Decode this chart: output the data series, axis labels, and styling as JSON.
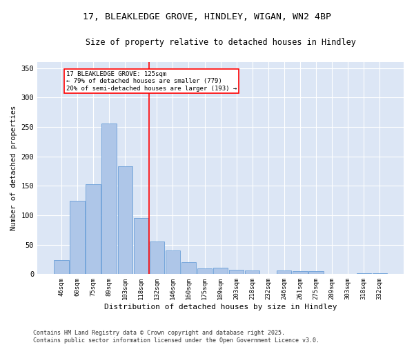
{
  "title_line1": "17, BLEAKLEDGE GROVE, HINDLEY, WIGAN, WN2 4BP",
  "title_line2": "Size of property relative to detached houses in Hindley",
  "xlabel": "Distribution of detached houses by size in Hindley",
  "ylabel": "Number of detached properties",
  "categories": [
    "46sqm",
    "60sqm",
    "75sqm",
    "89sqm",
    "103sqm",
    "118sqm",
    "132sqm",
    "146sqm",
    "160sqm",
    "175sqm",
    "189sqm",
    "203sqm",
    "218sqm",
    "232sqm",
    "246sqm",
    "261sqm",
    "275sqm",
    "289sqm",
    "303sqm",
    "318sqm",
    "332sqm"
  ],
  "values": [
    24,
    124,
    153,
    256,
    183,
    95,
    55,
    40,
    20,
    10,
    11,
    7,
    6,
    0,
    6,
    5,
    5,
    0,
    0,
    2,
    2
  ],
  "bar_color": "#aec6e8",
  "bar_edge_color": "#6a9fd8",
  "marker_label": "17 BLEAKLEDGE GROVE: 125sqm",
  "marker_stat1": "← 79% of detached houses are smaller (779)",
  "marker_stat2": "20% of semi-detached houses are larger (193) →",
  "vline_color": "red",
  "ylim": [
    0,
    360
  ],
  "yticks": [
    0,
    50,
    100,
    150,
    200,
    250,
    300,
    350
  ],
  "background_color": "#dce6f5",
  "footer_line1": "Contains HM Land Registry data © Crown copyright and database right 2025.",
  "footer_line2": "Contains public sector information licensed under the Open Government Licence v3.0."
}
